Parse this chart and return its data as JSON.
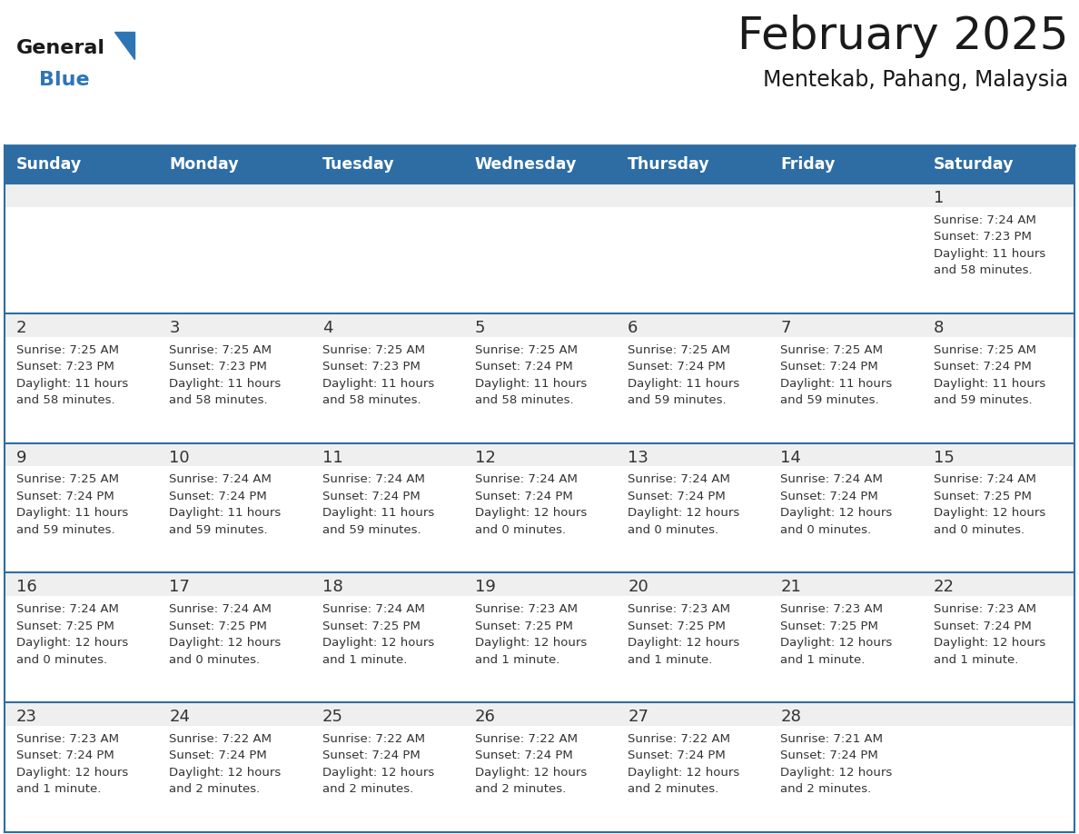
{
  "title": "February 2025",
  "subtitle": "Mentekab, Pahang, Malaysia",
  "days_of_week": [
    "Sunday",
    "Monday",
    "Tuesday",
    "Wednesday",
    "Thursday",
    "Friday",
    "Saturday"
  ],
  "header_bg": "#2E6DA4",
  "header_text": "#FFFFFF",
  "cell_bg_light": "#EFEFEF",
  "cell_bg_white": "#FFFFFF",
  "row_border_color": "#2E6DA4",
  "text_color": "#333333",
  "logo_general_color": "#1a1a1a",
  "logo_blue_color": "#2E75B6",
  "calendar_data": [
    [
      {
        "day": null,
        "info": null
      },
      {
        "day": null,
        "info": null
      },
      {
        "day": null,
        "info": null
      },
      {
        "day": null,
        "info": null
      },
      {
        "day": null,
        "info": null
      },
      {
        "day": null,
        "info": null
      },
      {
        "day": 1,
        "info": "Sunrise: 7:24 AM\nSunset: 7:23 PM\nDaylight: 11 hours\nand 58 minutes."
      }
    ],
    [
      {
        "day": 2,
        "info": "Sunrise: 7:25 AM\nSunset: 7:23 PM\nDaylight: 11 hours\nand 58 minutes."
      },
      {
        "day": 3,
        "info": "Sunrise: 7:25 AM\nSunset: 7:23 PM\nDaylight: 11 hours\nand 58 minutes."
      },
      {
        "day": 4,
        "info": "Sunrise: 7:25 AM\nSunset: 7:23 PM\nDaylight: 11 hours\nand 58 minutes."
      },
      {
        "day": 5,
        "info": "Sunrise: 7:25 AM\nSunset: 7:24 PM\nDaylight: 11 hours\nand 58 minutes."
      },
      {
        "day": 6,
        "info": "Sunrise: 7:25 AM\nSunset: 7:24 PM\nDaylight: 11 hours\nand 59 minutes."
      },
      {
        "day": 7,
        "info": "Sunrise: 7:25 AM\nSunset: 7:24 PM\nDaylight: 11 hours\nand 59 minutes."
      },
      {
        "day": 8,
        "info": "Sunrise: 7:25 AM\nSunset: 7:24 PM\nDaylight: 11 hours\nand 59 minutes."
      }
    ],
    [
      {
        "day": 9,
        "info": "Sunrise: 7:25 AM\nSunset: 7:24 PM\nDaylight: 11 hours\nand 59 minutes."
      },
      {
        "day": 10,
        "info": "Sunrise: 7:24 AM\nSunset: 7:24 PM\nDaylight: 11 hours\nand 59 minutes."
      },
      {
        "day": 11,
        "info": "Sunrise: 7:24 AM\nSunset: 7:24 PM\nDaylight: 11 hours\nand 59 minutes."
      },
      {
        "day": 12,
        "info": "Sunrise: 7:24 AM\nSunset: 7:24 PM\nDaylight: 12 hours\nand 0 minutes."
      },
      {
        "day": 13,
        "info": "Sunrise: 7:24 AM\nSunset: 7:24 PM\nDaylight: 12 hours\nand 0 minutes."
      },
      {
        "day": 14,
        "info": "Sunrise: 7:24 AM\nSunset: 7:24 PM\nDaylight: 12 hours\nand 0 minutes."
      },
      {
        "day": 15,
        "info": "Sunrise: 7:24 AM\nSunset: 7:25 PM\nDaylight: 12 hours\nand 0 minutes."
      }
    ],
    [
      {
        "day": 16,
        "info": "Sunrise: 7:24 AM\nSunset: 7:25 PM\nDaylight: 12 hours\nand 0 minutes."
      },
      {
        "day": 17,
        "info": "Sunrise: 7:24 AM\nSunset: 7:25 PM\nDaylight: 12 hours\nand 0 minutes."
      },
      {
        "day": 18,
        "info": "Sunrise: 7:24 AM\nSunset: 7:25 PM\nDaylight: 12 hours\nand 1 minute."
      },
      {
        "day": 19,
        "info": "Sunrise: 7:23 AM\nSunset: 7:25 PM\nDaylight: 12 hours\nand 1 minute."
      },
      {
        "day": 20,
        "info": "Sunrise: 7:23 AM\nSunset: 7:25 PM\nDaylight: 12 hours\nand 1 minute."
      },
      {
        "day": 21,
        "info": "Sunrise: 7:23 AM\nSunset: 7:25 PM\nDaylight: 12 hours\nand 1 minute."
      },
      {
        "day": 22,
        "info": "Sunrise: 7:23 AM\nSunset: 7:24 PM\nDaylight: 12 hours\nand 1 minute."
      }
    ],
    [
      {
        "day": 23,
        "info": "Sunrise: 7:23 AM\nSunset: 7:24 PM\nDaylight: 12 hours\nand 1 minute."
      },
      {
        "day": 24,
        "info": "Sunrise: 7:22 AM\nSunset: 7:24 PM\nDaylight: 12 hours\nand 2 minutes."
      },
      {
        "day": 25,
        "info": "Sunrise: 7:22 AM\nSunset: 7:24 PM\nDaylight: 12 hours\nand 2 minutes."
      },
      {
        "day": 26,
        "info": "Sunrise: 7:22 AM\nSunset: 7:24 PM\nDaylight: 12 hours\nand 2 minutes."
      },
      {
        "day": 27,
        "info": "Sunrise: 7:22 AM\nSunset: 7:24 PM\nDaylight: 12 hours\nand 2 minutes."
      },
      {
        "day": 28,
        "info": "Sunrise: 7:21 AM\nSunset: 7:24 PM\nDaylight: 12 hours\nand 2 minutes."
      },
      {
        "day": null,
        "info": null
      }
    ]
  ]
}
